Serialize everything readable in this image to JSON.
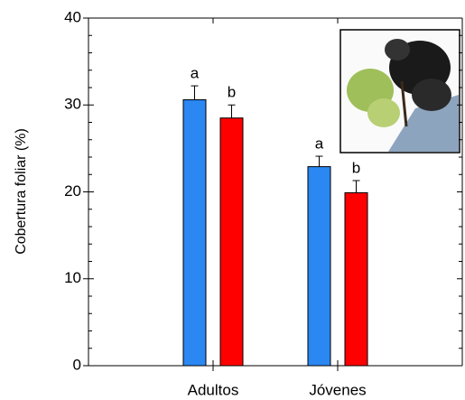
{
  "chart_data": {
    "type": "bar",
    "y_label": "Cobertura foliar (%)",
    "categories": [
      "Adultos",
      "Jóvenes"
    ],
    "series": [
      {
        "color": "#2b87f2",
        "values": [
          30.6,
          22.9
        ],
        "errors": [
          1.6,
          1.2
        ],
        "letters": [
          "a",
          "a"
        ]
      },
      {
        "color": "#ff0000",
        "values": [
          28.5,
          19.9
        ],
        "errors": [
          1.5,
          1.4
        ],
        "letters": [
          "b",
          "b"
        ]
      }
    ],
    "ylim": [
      0,
      40
    ],
    "yticks": [
      0,
      10,
      20,
      30,
      40
    ],
    "grid": false
  }
}
